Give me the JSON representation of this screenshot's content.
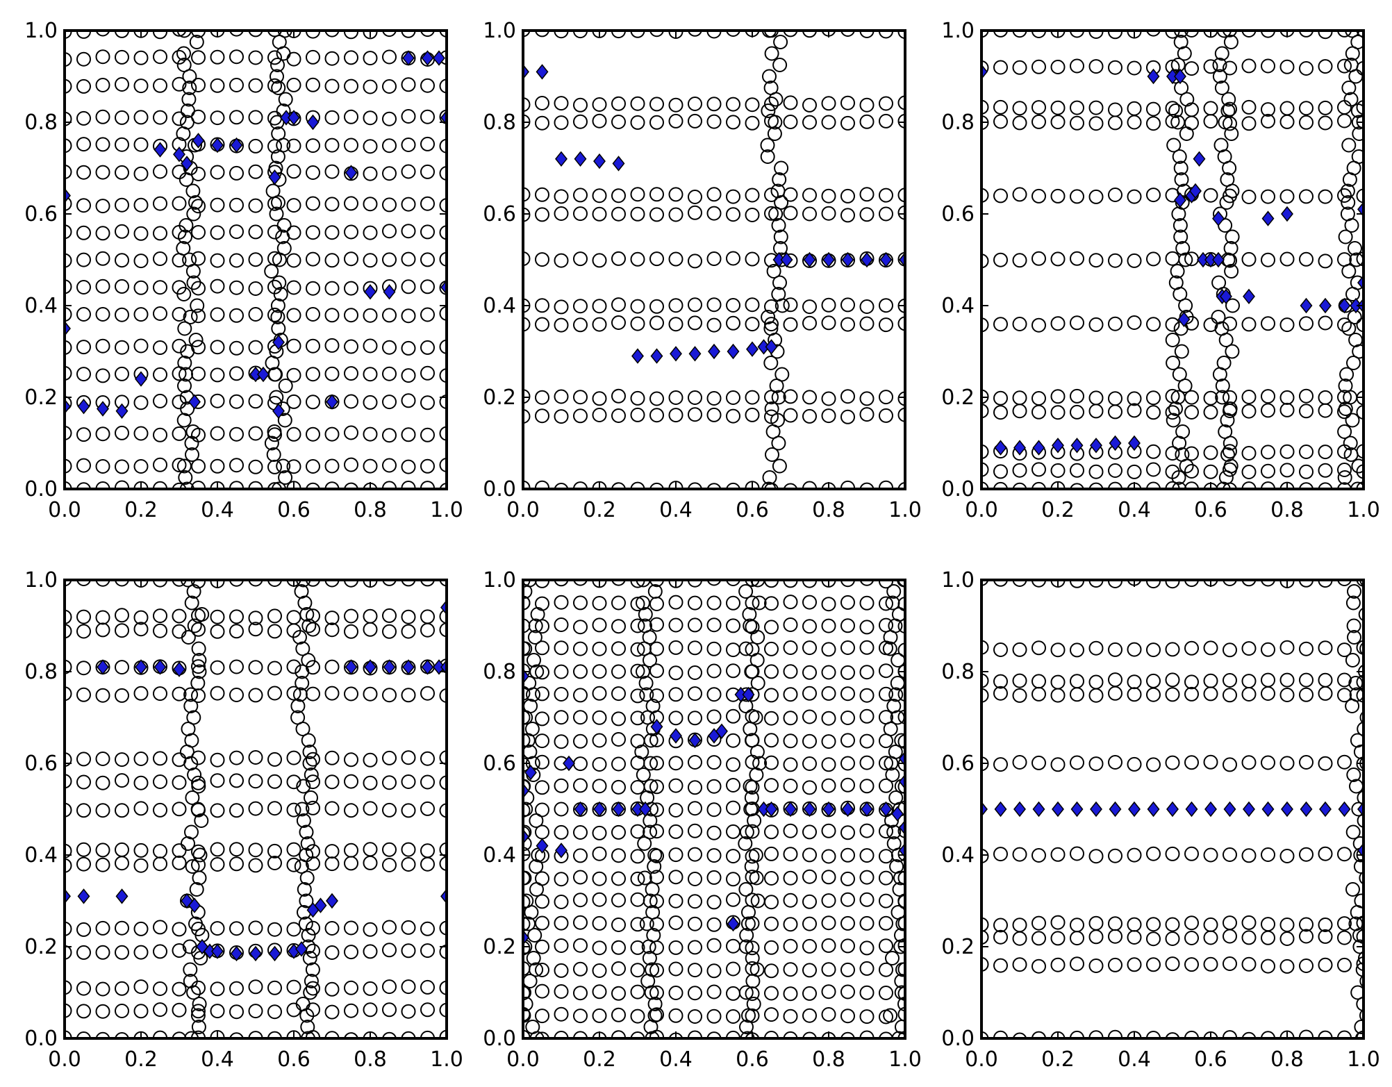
{
  "chart_data": [
    {
      "type": "scatter",
      "xlim": [
        0,
        1
      ],
      "ylim": [
        0,
        1
      ],
      "xticks": [
        "0.0",
        "0.2",
        "0.4",
        "0.6",
        "0.8",
        "1.0"
      ],
      "yticks": [
        "0.0",
        "0.2",
        "0.4",
        "0.6",
        "0.8",
        "1.0"
      ],
      "grid": false,
      "series": [
        {
          "marker": "open-circle",
          "color": "#000000",
          "rows_y": [
            0.0,
            0.05,
            0.12,
            0.19,
            0.25,
            0.31,
            0.38,
            0.44,
            0.5,
            0.56,
            0.62,
            0.69,
            0.75,
            0.81,
            0.88,
            0.94,
            1.0
          ],
          "x": [
            0.0,
            0.05,
            0.1,
            0.15,
            0.2,
            0.25,
            0.3,
            0.35,
            0.4,
            0.45,
            0.5,
            0.55,
            0.6,
            0.65,
            0.7,
            0.75,
            0.8,
            0.85,
            0.9,
            0.95,
            1.0
          ],
          "vertical_bands_x": [
            0.33,
            0.56
          ]
        },
        {
          "marker": "filled-diamond",
          "color": "#1a1ad6",
          "points": [
            [
              0.0,
              0.64
            ],
            [
              0.0,
              0.35
            ],
            [
              0.0,
              0.18
            ],
            [
              0.05,
              0.18
            ],
            [
              0.1,
              0.175
            ],
            [
              0.15,
              0.17
            ],
            [
              0.2,
              0.24
            ],
            [
              0.25,
              0.74
            ],
            [
              0.3,
              0.73
            ],
            [
              0.32,
              0.71
            ],
            [
              0.35,
              0.76
            ],
            [
              0.4,
              0.75
            ],
            [
              0.45,
              0.75
            ],
            [
              0.34,
              0.19
            ],
            [
              0.5,
              0.25
            ],
            [
              0.52,
              0.25
            ],
            [
              0.55,
              0.68
            ],
            [
              0.56,
              0.32
            ],
            [
              0.56,
              0.17
            ],
            [
              0.58,
              0.81
            ],
            [
              0.6,
              0.81
            ],
            [
              0.65,
              0.8
            ],
            [
              0.7,
              0.19
            ],
            [
              0.75,
              0.69
            ],
            [
              0.8,
              0.43
            ],
            [
              0.85,
              0.43
            ],
            [
              0.9,
              0.94
            ],
            [
              0.95,
              0.94
            ],
            [
              0.98,
              0.94
            ],
            [
              1.0,
              0.81
            ],
            [
              1.0,
              0.44
            ]
          ]
        }
      ]
    },
    {
      "type": "scatter",
      "xlim": [
        0,
        1
      ],
      "ylim": [
        0,
        1
      ],
      "xticks": [
        "0.0",
        "0.2",
        "0.4",
        "0.6",
        "0.8",
        "1.0"
      ],
      "yticks": [
        "0.0",
        "0.2",
        "0.4",
        "0.6",
        "0.8",
        "1.0"
      ],
      "grid": false,
      "series": [
        {
          "marker": "open-circle",
          "color": "#000000",
          "rows_y": [
            0.0,
            0.16,
            0.2,
            0.36,
            0.4,
            0.5,
            0.6,
            0.64,
            0.8,
            0.84,
            1.0
          ],
          "x": [
            0.0,
            0.05,
            0.1,
            0.15,
            0.2,
            0.25,
            0.3,
            0.35,
            0.4,
            0.45,
            0.5,
            0.55,
            0.6,
            0.65,
            0.7,
            0.75,
            0.8,
            0.85,
            0.9,
            0.95,
            1.0
          ],
          "vertical_bands_x": [
            0.66
          ]
        },
        {
          "marker": "filled-diamond",
          "color": "#1a1ad6",
          "points": [
            [
              0.0,
              0.91
            ],
            [
              0.05,
              0.91
            ],
            [
              0.1,
              0.72
            ],
            [
              0.15,
              0.72
            ],
            [
              0.2,
              0.715
            ],
            [
              0.25,
              0.71
            ],
            [
              0.3,
              0.29
            ],
            [
              0.35,
              0.29
            ],
            [
              0.4,
              0.295
            ],
            [
              0.45,
              0.295
            ],
            [
              0.5,
              0.3
            ],
            [
              0.55,
              0.3
            ],
            [
              0.6,
              0.305
            ],
            [
              0.63,
              0.31
            ],
            [
              0.65,
              0.31
            ],
            [
              0.67,
              0.5
            ],
            [
              0.69,
              0.5
            ],
            [
              0.75,
              0.5
            ],
            [
              0.8,
              0.5
            ],
            [
              0.85,
              0.5
            ],
            [
              0.9,
              0.5
            ],
            [
              0.95,
              0.5
            ],
            [
              1.0,
              0.5
            ]
          ]
        }
      ]
    },
    {
      "type": "scatter",
      "xlim": [
        0,
        1
      ],
      "ylim": [
        0,
        1
      ],
      "xticks": [
        "0.0",
        "0.2",
        "0.4",
        "0.6",
        "0.8",
        "1.0"
      ],
      "yticks": [
        "0.0",
        "0.2",
        "0.4",
        "0.6",
        "0.8",
        "1.0"
      ],
      "grid": false,
      "series": [
        {
          "marker": "open-circle",
          "color": "#000000",
          "rows_y": [
            0.0,
            0.04,
            0.08,
            0.17,
            0.2,
            0.36,
            0.5,
            0.64,
            0.8,
            0.83,
            0.92,
            1.0
          ],
          "x": [
            0.0,
            0.05,
            0.1,
            0.15,
            0.2,
            0.25,
            0.3,
            0.35,
            0.4,
            0.45,
            0.5,
            0.55,
            0.6,
            0.65,
            0.7,
            0.75,
            0.8,
            0.85,
            0.9,
            0.95,
            1.0
          ],
          "vertical_bands_x": [
            0.52,
            0.64,
            0.97
          ]
        },
        {
          "marker": "filled-diamond",
          "color": "#1a1ad6",
          "points": [
            [
              0.0,
              0.91
            ],
            [
              0.05,
              0.09
            ],
            [
              0.1,
              0.09
            ],
            [
              0.15,
              0.09
            ],
            [
              0.2,
              0.095
            ],
            [
              0.25,
              0.095
            ],
            [
              0.3,
              0.095
            ],
            [
              0.35,
              0.1
            ],
            [
              0.4,
              0.1
            ],
            [
              0.45,
              0.9
            ],
            [
              0.5,
              0.9
            ],
            [
              0.52,
              0.9
            ],
            [
              0.52,
              0.63
            ],
            [
              0.53,
              0.37
            ],
            [
              0.55,
              0.64
            ],
            [
              0.56,
              0.65
            ],
            [
              0.57,
              0.72
            ],
            [
              0.58,
              0.5
            ],
            [
              0.6,
              0.5
            ],
            [
              0.62,
              0.5
            ],
            [
              0.62,
              0.59
            ],
            [
              0.63,
              0.42
            ],
            [
              0.64,
              0.42
            ],
            [
              0.7,
              0.42
            ],
            [
              0.75,
              0.59
            ],
            [
              0.8,
              0.6
            ],
            [
              0.85,
              0.4
            ],
            [
              0.9,
              0.4
            ],
            [
              0.95,
              0.4
            ],
            [
              0.98,
              0.4
            ],
            [
              1.0,
              0.61
            ],
            [
              1.0,
              0.45
            ],
            [
              1.0,
              0.4
            ]
          ]
        }
      ]
    },
    {
      "type": "scatter",
      "xlim": [
        0,
        1
      ],
      "ylim": [
        0,
        1
      ],
      "xticks": [
        "0.0",
        "0.2",
        "0.4",
        "0.6",
        "0.8",
        "1.0"
      ],
      "yticks": [
        "0.0",
        "0.2",
        "0.4",
        "0.6",
        "0.8",
        "1.0"
      ],
      "grid": false,
      "series": [
        {
          "marker": "open-circle",
          "color": "#000000",
          "rows_y": [
            0.0,
            0.06,
            0.11,
            0.19,
            0.24,
            0.38,
            0.41,
            0.5,
            0.56,
            0.61,
            0.75,
            0.81,
            0.89,
            0.92,
            1.0
          ],
          "x": [
            0.0,
            0.05,
            0.1,
            0.15,
            0.2,
            0.25,
            0.3,
            0.35,
            0.4,
            0.45,
            0.5,
            0.55,
            0.6,
            0.65,
            0.7,
            0.75,
            0.8,
            0.85,
            0.9,
            0.95,
            1.0
          ],
          "vertical_bands_x": [
            0.34,
            0.63
          ]
        },
        {
          "marker": "filled-diamond",
          "color": "#1a1ad6",
          "points": [
            [
              0.0,
              0.31
            ],
            [
              0.05,
              0.31
            ],
            [
              0.1,
              0.81
            ],
            [
              0.15,
              0.31
            ],
            [
              0.2,
              0.81
            ],
            [
              0.25,
              0.81
            ],
            [
              0.3,
              0.805
            ],
            [
              0.32,
              0.3
            ],
            [
              0.34,
              0.29
            ],
            [
              0.36,
              0.2
            ],
            [
              0.38,
              0.19
            ],
            [
              0.4,
              0.19
            ],
            [
              0.45,
              0.185
            ],
            [
              0.5,
              0.185
            ],
            [
              0.55,
              0.185
            ],
            [
              0.6,
              0.19
            ],
            [
              0.62,
              0.195
            ],
            [
              0.65,
              0.28
            ],
            [
              0.67,
              0.29
            ],
            [
              0.7,
              0.3
            ],
            [
              0.75,
              0.81
            ],
            [
              0.8,
              0.81
            ],
            [
              0.85,
              0.81
            ],
            [
              0.9,
              0.81
            ],
            [
              0.95,
              0.81
            ],
            [
              0.98,
              0.81
            ],
            [
              1.0,
              0.81
            ],
            [
              1.0,
              0.94
            ],
            [
              1.0,
              0.31
            ]
          ]
        }
      ]
    },
    {
      "type": "scatter",
      "xlim": [
        0,
        1
      ],
      "ylim": [
        0,
        1
      ],
      "xticks": [
        "0.0",
        "0.2",
        "0.4",
        "0.6",
        "0.8",
        "1.0"
      ],
      "yticks": [
        "0.0",
        "0.2",
        "0.4",
        "0.6",
        "0.8",
        "1.0"
      ],
      "grid": false,
      "series": [
        {
          "marker": "open-circle",
          "color": "#000000",
          "rows_y": [
            0.0,
            0.05,
            0.1,
            0.15,
            0.2,
            0.25,
            0.3,
            0.35,
            0.4,
            0.45,
            0.5,
            0.55,
            0.6,
            0.65,
            0.7,
            0.75,
            0.8,
            0.85,
            0.9,
            0.95,
            1.0
          ],
          "x": [
            0.0,
            0.05,
            0.1,
            0.15,
            0.2,
            0.25,
            0.3,
            0.35,
            0.4,
            0.45,
            0.5,
            0.55,
            0.6,
            0.65,
            0.7,
            0.75,
            0.8,
            0.85,
            0.9,
            0.95,
            1.0
          ],
          "vertical_bands_x": [
            0.02,
            0.33,
            0.6,
            0.98
          ]
        },
        {
          "marker": "filled-diamond",
          "color": "#1a1ad6",
          "points": [
            [
              0.0,
              0.79
            ],
            [
              0.0,
              0.54
            ],
            [
              0.0,
              0.44
            ],
            [
              0.0,
              0.22
            ],
            [
              0.02,
              0.58
            ],
            [
              0.05,
              0.42
            ],
            [
              0.1,
              0.41
            ],
            [
              0.12,
              0.6
            ],
            [
              0.15,
              0.5
            ],
            [
              0.2,
              0.5
            ],
            [
              0.25,
              0.5
            ],
            [
              0.3,
              0.5
            ],
            [
              0.32,
              0.5
            ],
            [
              0.35,
              0.68
            ],
            [
              0.4,
              0.66
            ],
            [
              0.45,
              0.65
            ],
            [
              0.5,
              0.66
            ],
            [
              0.52,
              0.67
            ],
            [
              0.55,
              0.25
            ],
            [
              0.57,
              0.75
            ],
            [
              0.59,
              0.75
            ],
            [
              0.63,
              0.5
            ],
            [
              0.65,
              0.5
            ],
            [
              0.7,
              0.5
            ],
            [
              0.75,
              0.5
            ],
            [
              0.8,
              0.5
            ],
            [
              0.85,
              0.5
            ],
            [
              0.9,
              0.5
            ],
            [
              0.95,
              0.5
            ],
            [
              0.98,
              0.49
            ],
            [
              1.0,
              0.61
            ],
            [
              1.0,
              0.56
            ],
            [
              1.0,
              0.46
            ],
            [
              1.0,
              0.41
            ]
          ]
        }
      ]
    },
    {
      "type": "scatter",
      "xlim": [
        0,
        1
      ],
      "ylim": [
        0,
        1
      ],
      "xticks": [
        "0.0",
        "0.2",
        "0.4",
        "0.6",
        "0.8",
        "1.0"
      ],
      "yticks": [
        "0.0",
        "0.2",
        "0.4",
        "0.6",
        "0.8",
        "1.0"
      ],
      "grid": false,
      "series": [
        {
          "marker": "open-circle",
          "color": "#000000",
          "rows_y": [
            0.0,
            0.16,
            0.22,
            0.25,
            0.4,
            0.6,
            0.75,
            0.78,
            0.85,
            1.0
          ],
          "x": [
            0.0,
            0.05,
            0.1,
            0.15,
            0.2,
            0.25,
            0.3,
            0.35,
            0.4,
            0.45,
            0.5,
            0.55,
            0.6,
            0.65,
            0.7,
            0.75,
            0.8,
            0.85,
            0.9,
            0.95,
            1.0
          ],
          "vertical_bands_x": [
            0.99
          ]
        },
        {
          "marker": "filled-diamond",
          "color": "#1a1ad6",
          "points": [
            [
              0.0,
              0.5
            ],
            [
              0.05,
              0.5
            ],
            [
              0.1,
              0.5
            ],
            [
              0.15,
              0.5
            ],
            [
              0.2,
              0.5
            ],
            [
              0.25,
              0.5
            ],
            [
              0.3,
              0.5
            ],
            [
              0.35,
              0.5
            ],
            [
              0.4,
              0.5
            ],
            [
              0.45,
              0.5
            ],
            [
              0.5,
              0.5
            ],
            [
              0.55,
              0.5
            ],
            [
              0.6,
              0.5
            ],
            [
              0.65,
              0.5
            ],
            [
              0.7,
              0.5
            ],
            [
              0.75,
              0.5
            ],
            [
              0.8,
              0.5
            ],
            [
              0.85,
              0.5
            ],
            [
              0.9,
              0.5
            ],
            [
              0.95,
              0.5
            ],
            [
              1.0,
              0.5
            ],
            [
              1.0,
              0.41
            ]
          ]
        }
      ]
    }
  ]
}
